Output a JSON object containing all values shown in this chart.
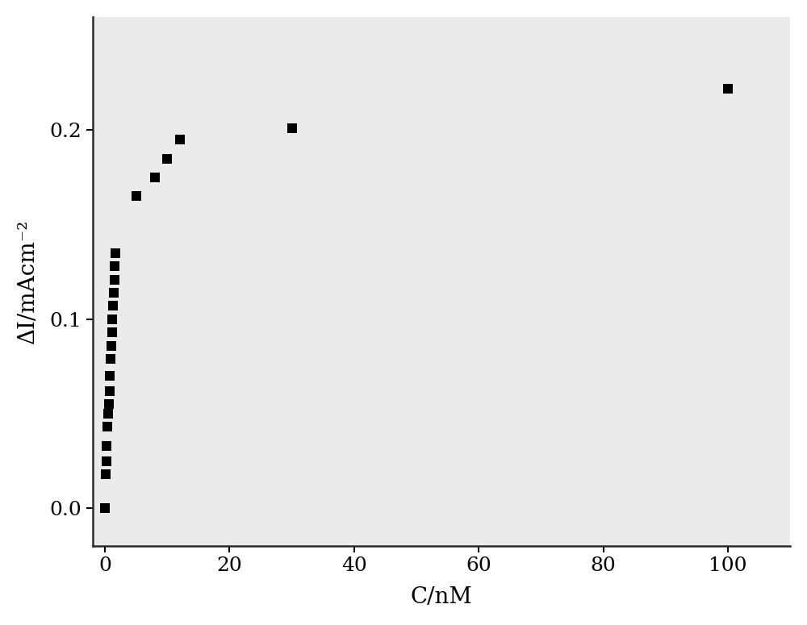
{
  "x": [
    0,
    0.1,
    0.2,
    0.3,
    0.4,
    0.5,
    0.6,
    0.7,
    0.8,
    0.9,
    1.0,
    1.1,
    1.2,
    1.3,
    1.4,
    1.5,
    1.6,
    1.7,
    5,
    8,
    10,
    12,
    30,
    100
  ],
  "y": [
    0.0,
    0.018,
    0.025,
    0.033,
    0.043,
    0.05,
    0.055,
    0.062,
    0.07,
    0.079,
    0.086,
    0.093,
    0.1,
    0.107,
    0.114,
    0.121,
    0.128,
    0.135,
    0.165,
    0.175,
    0.185,
    0.195,
    0.201,
    0.222
  ],
  "xlabel": "C/nM",
  "ylabel": "ΔI/mAcm⁻²",
  "xlim": [
    -2,
    110
  ],
  "ylim": [
    -0.02,
    0.26
  ],
  "xticks": [
    0,
    20,
    40,
    60,
    80,
    100
  ],
  "yticks": [
    0.0,
    0.1,
    0.2
  ],
  "marker_color": "#000000",
  "marker_size": 80,
  "marker_style": "s",
  "axes_facecolor": "#ebebeb",
  "fig_facecolor": "#ffffff",
  "tick_labelsize": 18,
  "label_fontsize": 20,
  "spine_linewidth": 1.8,
  "spine_color": "#2a2a2a"
}
